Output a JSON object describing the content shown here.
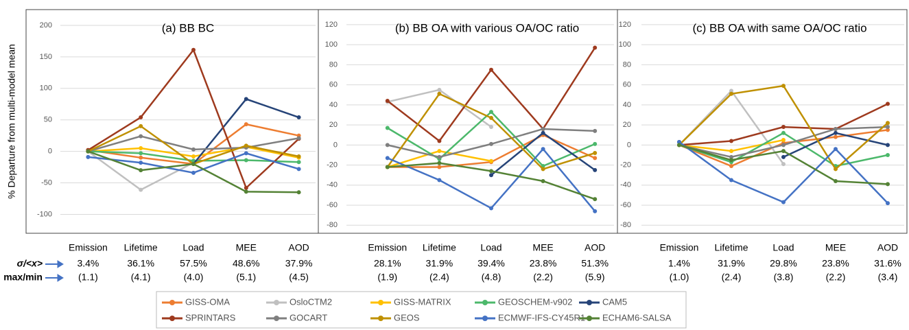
{
  "ylabel": "% Departure from multi-model mean",
  "row_labels": [
    "σ/<x>",
    "max/min"
  ],
  "chart_data": [
    {
      "type": "line",
      "title": "(a) BB BC",
      "categories": [
        "Emission",
        "Lifetime",
        "Load",
        "MEE",
        "AOD"
      ],
      "ylim": [
        -130,
        225
      ],
      "yticks": [
        -100,
        -50,
        0,
        50,
        100,
        150,
        200
      ],
      "grid": true,
      "stats": {
        "ratio": [
          "3.4%",
          "36.1%",
          "57.5%",
          "48.6%",
          "37.9%"
        ],
        "maxmin": [
          "(1.1)",
          "(4.1)",
          "(4.0)",
          "(5.1)",
          "(4.5)"
        ]
      },
      "series": [
        {
          "name": "GISS-OMA",
          "color": "#ed7d31",
          "values": [
            2,
            -10,
            -20,
            43,
            25
          ]
        },
        {
          "name": "OsloCTM2",
          "color": "#c0c0c0",
          "values": [
            0,
            -61,
            -18,
            null,
            null
          ]
        },
        {
          "name": "GISS-MATRIX",
          "color": "#ffc000",
          "values": [
            0,
            5,
            -8,
            7,
            -10
          ]
        },
        {
          "name": "GEOSCHEM-v902",
          "color": "#4cb86b",
          "values": [
            0,
            -3,
            -15,
            -14,
            -17
          ]
        },
        {
          "name": "CAM5",
          "color": "#264478",
          "values": [
            null,
            null,
            -20,
            83,
            54
          ]
        },
        {
          "name": "SPRINTARS",
          "color": "#9e3a1e",
          "values": [
            2,
            54,
            161,
            -58,
            20
          ]
        },
        {
          "name": "GOCART",
          "color": "#7f7f7f",
          "values": [
            0,
            24,
            3,
            6,
            21
          ]
        },
        {
          "name": "GEOS",
          "color": "#bf9000",
          "values": [
            0,
            40,
            -20,
            9,
            -8
          ]
        },
        {
          "name": "ECMWF-IFS-CY45R1",
          "color": "#4472c4",
          "values": [
            -9,
            -18,
            -34,
            -3,
            -28
          ]
        },
        {
          "name": "ECHAM6-SALSA",
          "color": "#548235",
          "values": [
            0,
            -30,
            -20,
            -64,
            -65
          ]
        }
      ]
    },
    {
      "type": "line",
      "title": "(b) BB OA with various OA/OC ratio",
      "categories": [
        "Emission",
        "Lifetime",
        "Load",
        "MEE",
        "AOD"
      ],
      "ylim": [
        -88,
        135
      ],
      "yticks": [
        -80,
        -60,
        -40,
        -20,
        0,
        20,
        40,
        60,
        80,
        100,
        120
      ],
      "grid": true,
      "stats": {
        "ratio": [
          "28.1%",
          "31.9%",
          "39.4%",
          "23.8%",
          "51.3%"
        ],
        "maxmin": [
          "(1.9)",
          "(2.4)",
          "(4.8)",
          "(2.2)",
          "(5.9)"
        ]
      },
      "series": [
        {
          "name": "GISS-OMA",
          "color": "#ed7d31",
          "values": [
            -22,
            -22,
            -17,
            10,
            -13
          ]
        },
        {
          "name": "OsloCTM2",
          "color": "#c0c0c0",
          "values": [
            43,
            55,
            18,
            null,
            null
          ]
        },
        {
          "name": "GISS-MATRIX",
          "color": "#ffc000",
          "values": [
            -22,
            -6,
            -16,
            null,
            null
          ]
        },
        {
          "name": "GEOSCHEM-v902",
          "color": "#4cb86b",
          "values": [
            17,
            -14,
            33,
            -21,
            1
          ]
        },
        {
          "name": "CAM5",
          "color": "#264478",
          "values": [
            null,
            null,
            -30,
            12,
            -25
          ]
        },
        {
          "name": "SPRINTARS",
          "color": "#9e3a1e",
          "values": [
            44,
            4,
            75,
            16,
            97
          ]
        },
        {
          "name": "GOCART",
          "color": "#7f7f7f",
          "values": [
            0,
            -12,
            1,
            16,
            14
          ]
        },
        {
          "name": "GEOS",
          "color": "#bf9000",
          "values": [
            -22,
            51,
            27,
            -24,
            -8
          ]
        },
        {
          "name": "ECMWF-IFS-CY45R1",
          "color": "#4472c4",
          "values": [
            -13,
            -35,
            -63,
            -4,
            -66
          ]
        },
        {
          "name": "ECHAM6-SALSA",
          "color": "#548235",
          "values": [
            -22,
            -18,
            -26,
            -36,
            -54
          ]
        }
      ]
    },
    {
      "type": "line",
      "title": "(c) BB OA with same OA/OC ratio",
      "categories": [
        "Emission",
        "Lifetime",
        "Load",
        "MEE",
        "AOD"
      ],
      "ylim": [
        -88,
        135
      ],
      "yticks": [
        -80,
        -60,
        -40,
        -20,
        0,
        20,
        40,
        60,
        80,
        100,
        120
      ],
      "grid": true,
      "stats": {
        "ratio": [
          "1.4%",
          "31.9%",
          "29.8%",
          "23.8%",
          "31.6%"
        ],
        "maxmin": [
          "(1.0)",
          "(2.4)",
          "(3.8)",
          "(2.2)",
          "(3.4)"
        ]
      },
      "series": [
        {
          "name": "GISS-OMA",
          "color": "#ed7d31",
          "values": [
            0,
            -21,
            2,
            8,
            15
          ]
        },
        {
          "name": "OsloCTM2",
          "color": "#c0c0c0",
          "values": [
            0,
            54,
            -19,
            null,
            null
          ]
        },
        {
          "name": "GISS-MATRIX",
          "color": "#ffc000",
          "values": [
            0,
            -6,
            5,
            null,
            null
          ]
        },
        {
          "name": "GEOSCHEM-v902",
          "color": "#4cb86b",
          "values": [
            0,
            -17,
            12,
            -21,
            -10
          ]
        },
        {
          "name": "CAM5",
          "color": "#264478",
          "values": [
            3,
            null,
            -12,
            12,
            0
          ]
        },
        {
          "name": "SPRINTARS",
          "color": "#9e3a1e",
          "values": [
            0,
            4,
            18,
            16,
            41
          ]
        },
        {
          "name": "GOCART",
          "color": "#7f7f7f",
          "values": [
            0,
            -12,
            0,
            16,
            18
          ]
        },
        {
          "name": "GEOS",
          "color": "#bf9000",
          "values": [
            0,
            51,
            59,
            -24,
            22
          ]
        },
        {
          "name": "ECMWF-IFS-CY45R1",
          "color": "#4472c4",
          "values": [
            3,
            -35,
            -57,
            -4,
            -58
          ]
        },
        {
          "name": "ECHAM6-SALSA",
          "color": "#548235",
          "values": [
            0,
            -15,
            -6,
            -36,
            -39
          ]
        }
      ]
    }
  ]
}
